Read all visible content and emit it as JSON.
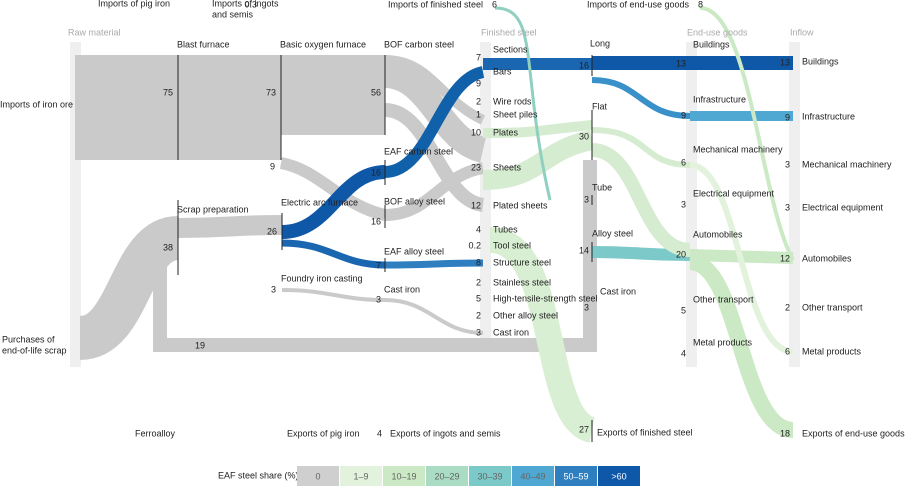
{
  "columns": [
    "Raw material",
    "Finished steel",
    "End-use goods",
    "Inflow"
  ],
  "nodes": [
    {
      "label": "Imports of iron ore"
    },
    {
      "label": [
        "Purchases of",
        "end-of-life scrap"
      ]
    },
    {
      "label": "Ferroalloy"
    },
    {
      "label": "Imports of pig iron"
    },
    {
      "label": [
        "Imports of ingots",
        "and semis"
      ],
      "value": 0.3
    },
    {
      "label": "Blast furnace",
      "value": 75
    },
    {
      "label": "Basic oxygen furnace",
      "value": 73
    },
    {
      "label": "BOF carbon steel",
      "value": 56
    },
    {
      "value": 9
    },
    {
      "label": "Scrap preparation",
      "value": 38
    },
    {
      "label": "Electric arc furnace",
      "value": 26
    },
    {
      "label": "Foundry iron casting",
      "value": 3
    },
    {
      "label": "EAF carbon steel",
      "value": 16
    },
    {
      "label": "BOF alloy steel",
      "value": 16
    },
    {
      "label": "EAF alloy steel",
      "value": 7
    },
    {
      "label": "Cast iron",
      "value": 3
    },
    {
      "value": 19
    },
    {
      "label": "Imports of finished steel",
      "value": 6
    },
    {
      "label": "Sections",
      "value": 7
    },
    {
      "label": "Bars",
      "value": 9
    },
    {
      "label": "Wire rods",
      "value": 2
    },
    {
      "label": "Sheet piles",
      "value": 1
    },
    {
      "label": "Plates",
      "value": 10
    },
    {
      "label": "Sheets",
      "value": 23
    },
    {
      "label": "Plated sheets",
      "value": 12
    },
    {
      "label": "Tubes",
      "value": 4
    },
    {
      "label": "Tool steel",
      "value": 0.2
    },
    {
      "label": "Structure steel",
      "value": 8
    },
    {
      "label": "Stainless steel",
      "value": 2
    },
    {
      "label": "High-tensile-strength steel",
      "value": 5
    },
    {
      "label": "Other alloy steel",
      "value": 2
    },
    {
      "label": "Cast iron",
      "value": 3
    },
    {
      "label": "Long",
      "value": 16
    },
    {
      "label": "Flat",
      "value": 30
    },
    {
      "label": "Tube",
      "value": 3
    },
    {
      "label": "Alloy steel",
      "value": 14
    },
    {
      "label": "Cast iron",
      "value": 3
    },
    {
      "label": "Exports of finished steel",
      "value": 27
    },
    {
      "label": "Imports of end-use goods",
      "value": 8
    },
    {
      "label": "Buildings",
      "value": 13
    },
    {
      "label": "Infrastructure",
      "value": 9
    },
    {
      "label": "Mechanical machinery",
      "value": 6
    },
    {
      "label": "Electrical equipment",
      "value": 3
    },
    {
      "label": "Automobiles",
      "value": 20
    },
    {
      "label": "Other transport",
      "value": 5
    },
    {
      "label": "Metal products",
      "value": 4
    },
    {
      "label": "Buildings",
      "value": 13
    },
    {
      "label": "Infrastructure",
      "value": 9
    },
    {
      "label": "Mechanical machinery",
      "value": 3
    },
    {
      "label": "Electrical equipment",
      "value": 3
    },
    {
      "label": "Automobiles",
      "value": 12
    },
    {
      "label": "Other transport",
      "value": 2
    },
    {
      "label": "Metal products",
      "value": 6
    },
    {
      "label": "Exports of end-use goods",
      "value": 18
    },
    {
      "label": "Exports of pig iron"
    },
    {
      "label": "Exports of ingots and semis",
      "value": 4
    }
  ],
  "legend": {
    "title": "EAF steel share (%)",
    "items": [
      {
        "label": "0",
        "color": "#cfcfcf"
      },
      {
        "label": "1–9",
        "color": "#e2f2dc"
      },
      {
        "label": "10–19",
        "color": "#cbe9c4"
      },
      {
        "label": "20–29",
        "color": "#a9dcc2"
      },
      {
        "label": "30–39",
        "color": "#7cc9c9"
      },
      {
        "label": "40–49",
        "color": "#4fa8d2"
      },
      {
        "label": "50–59",
        "color": "#2f7fc0"
      },
      {
        "label": ">60",
        "color": "#0f58a8"
      }
    ]
  }
}
